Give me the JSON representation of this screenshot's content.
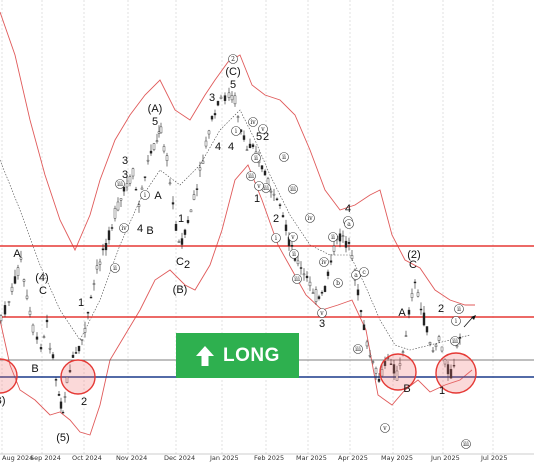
{
  "chart_data": {
    "type": "candlestick",
    "x_tick_labels": [
      "Aug 2024",
      "Sep 2024",
      "Oct 2024",
      "Nov 2024",
      "Dec 2024",
      "Jan 2025",
      "Feb 2025",
      "Mar 2025",
      "Apr 2025",
      "May 2025",
      "Jun 2025",
      "Jul 2025"
    ],
    "horizontal_lines": [
      {
        "role": "resistance-upper",
        "color": "#e53935"
      },
      {
        "role": "resistance-lower",
        "color": "#e53935"
      },
      {
        "role": "support",
        "color": "#1a3a8a"
      },
      {
        "role": "reference",
        "color": "#555555"
      }
    ],
    "signal": {
      "label": "LONG",
      "direction": "up",
      "color": "#2eb04f"
    },
    "wave_labels": [
      "A",
      "C",
      "(4)",
      "B",
      "B)",
      "(5)",
      "1",
      "2",
      "3",
      "(A)",
      "5",
      "4",
      "A",
      "1",
      "B",
      "C",
      "2",
      "(B)",
      "3",
      "4",
      "5",
      "(C)",
      "2",
      "1",
      "2",
      "3",
      "4",
      "5",
      "A",
      "B",
      "(2)",
      "C",
      "2",
      "1",
      "5",
      "4",
      "3"
    ],
    "circled_wave_labels": [
      "2",
      "iv",
      "v",
      "ii",
      "i",
      "iii",
      "ii",
      "iv",
      "iii",
      "i",
      "ii",
      "iii",
      "v",
      "iii",
      "iv",
      "v",
      "ii",
      "iv",
      "i",
      "c",
      "v",
      "iii",
      "b",
      "a",
      "ii",
      "c",
      "a",
      "iii",
      "v",
      "iii",
      "i",
      "ii",
      "iii"
    ]
  }
}
